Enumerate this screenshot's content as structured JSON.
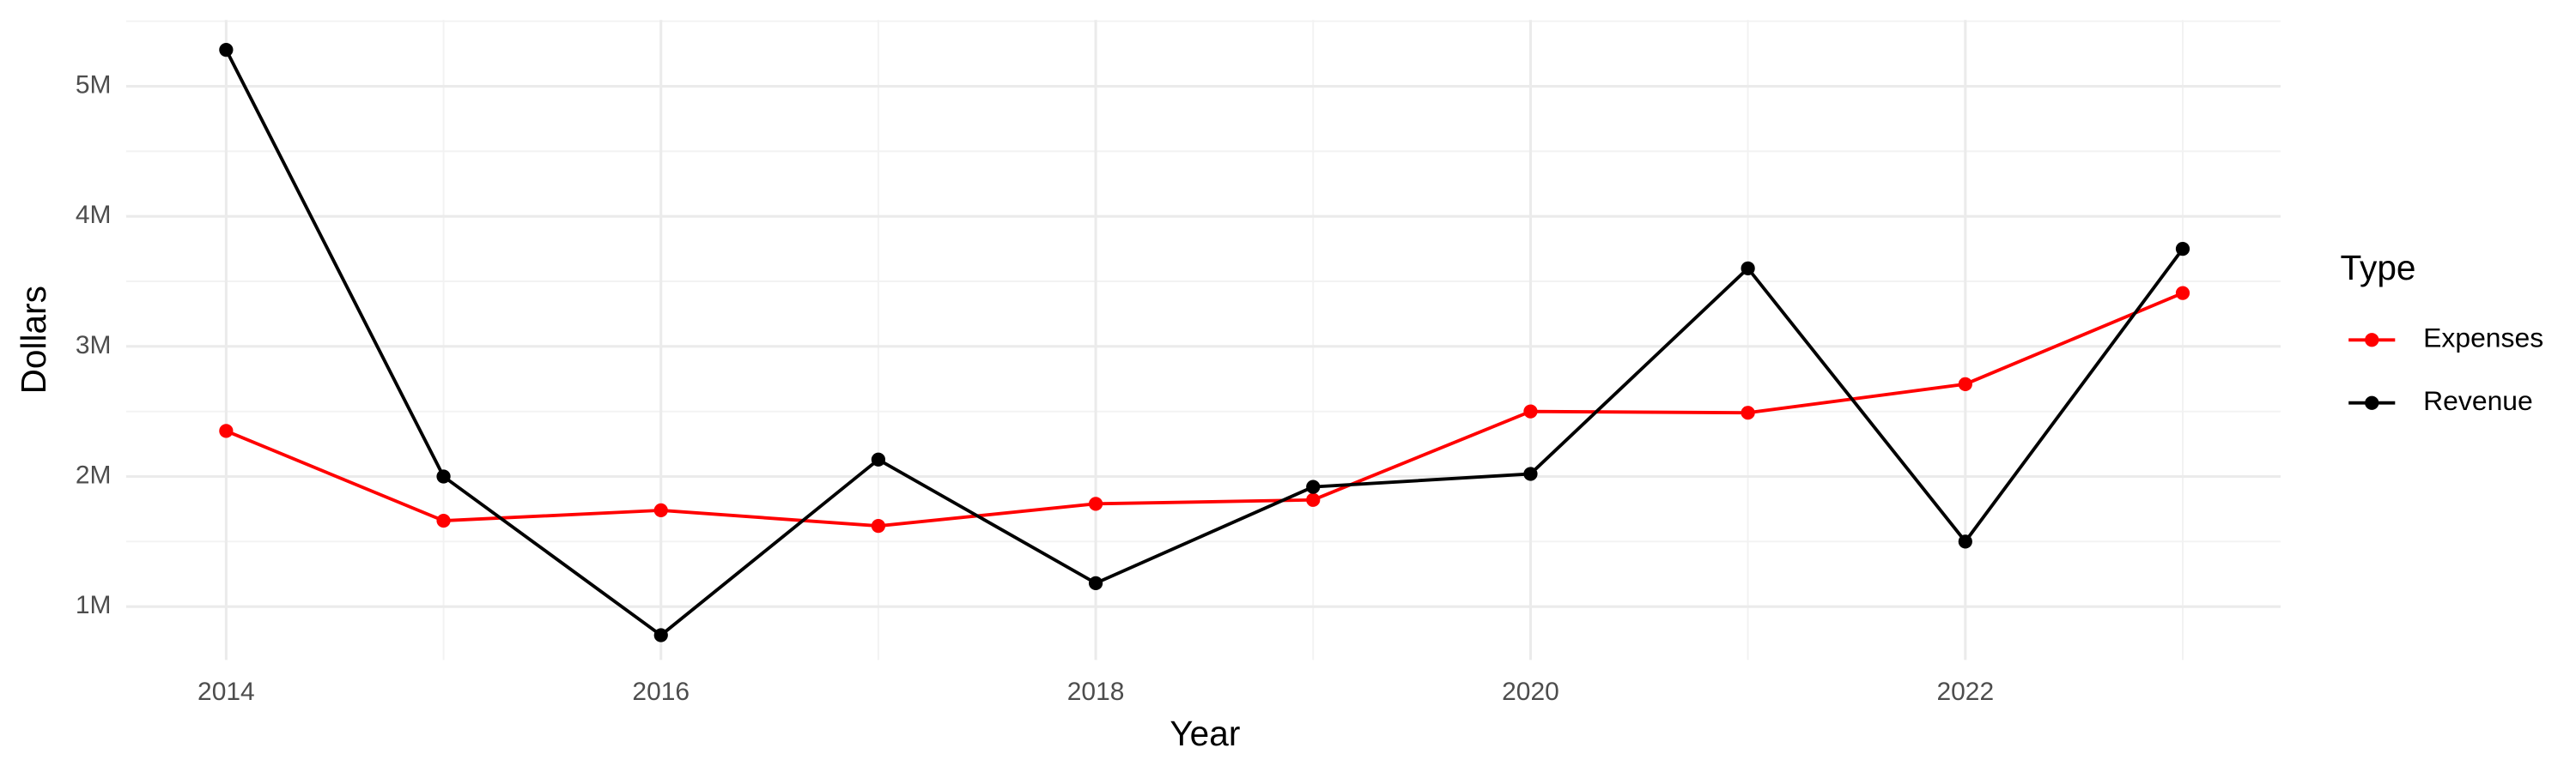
{
  "chart_data": {
    "type": "line",
    "x_label": "Year",
    "y_label": "Dollars",
    "legend_title": "Type",
    "legend_position": "right",
    "grid": true,
    "x": [
      2014,
      2015,
      2016,
      2017,
      2018,
      2019,
      2020,
      2021,
      2022,
      2023
    ],
    "series": [
      {
        "name": "Expenses",
        "color": "#ff0000",
        "values": [
          2350000,
          1660000,
          1740000,
          1620000,
          1790000,
          1820000,
          2500000,
          2490000,
          2710000,
          3410000
        ]
      },
      {
        "name": "Revenue",
        "color": "#000000",
        "values": [
          5280000,
          2000000,
          780000,
          2130000,
          1180000,
          1920000,
          2020000,
          3600000,
          1500000,
          3750000
        ]
      }
    ],
    "xlim": [
      2013.54,
      2023.45
    ],
    "xticks": [
      2014,
      2016,
      2018,
      2020,
      2022
    ],
    "ylim": [
      590000,
      5510000
    ],
    "yticks": [
      {
        "value": 1000000,
        "label": "1M"
      },
      {
        "value": 2000000,
        "label": "2M"
      },
      {
        "value": 3000000,
        "label": "3M"
      },
      {
        "value": 4000000,
        "label": "4M"
      },
      {
        "value": 5000000,
        "label": "5M"
      }
    ]
  }
}
